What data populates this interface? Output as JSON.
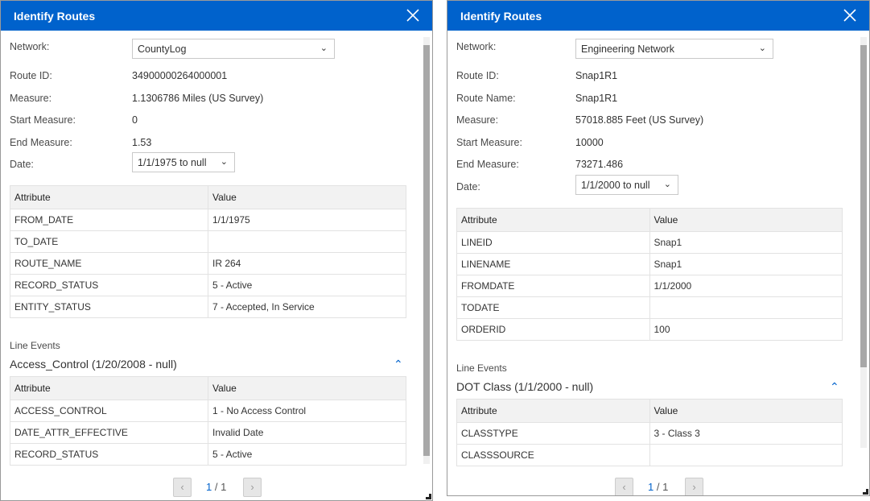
{
  "panels": [
    {
      "title": "Identify Routes",
      "fields": [
        {
          "label": "Network:"
        },
        {
          "label": "Route ID:",
          "value": "34900000264000001"
        },
        {
          "label": "Measure:",
          "value": "1.1306786 Miles (US Survey)"
        },
        {
          "label": "Start Measure:",
          "value": "0"
        },
        {
          "label": "End Measure:",
          "value": "1.53"
        },
        {
          "label": "Date:"
        }
      ],
      "network": "CountyLog",
      "date": "1/1/1975 to null",
      "table": {
        "headers": [
          "Attribute",
          "Value"
        ],
        "rows": [
          [
            "FROM_DATE",
            "1/1/1975"
          ],
          [
            "TO_DATE",
            ""
          ],
          [
            "ROUTE_NAME",
            "IR 264"
          ],
          [
            "RECORD_STATUS",
            "5 - Active"
          ],
          [
            "ENTITY_STATUS",
            "7 - Accepted, In Service"
          ]
        ]
      },
      "line_events_label": "Line Events",
      "event_title": "Access_Control (1/20/2008 - null)",
      "event_table": {
        "headers": [
          "Attribute",
          "Value"
        ],
        "rows": [
          [
            "ACCESS_CONTROL",
            "1 - No Access Control"
          ],
          [
            "DATE_ATTR_EFFECTIVE",
            "Invalid Date"
          ],
          [
            "RECORD_STATUS",
            "5 - Active"
          ]
        ]
      },
      "page_current": "1",
      "page_total": "/ 1"
    },
    {
      "title": "Identify Routes",
      "fields": [
        {
          "label": "Network:"
        },
        {
          "label": "Route ID:",
          "value": "Snap1R1"
        },
        {
          "label": "Route Name:",
          "value": "Snap1R1"
        },
        {
          "label": "Measure:",
          "value": "57018.885 Feet (US Survey)"
        },
        {
          "label": "Start Measure:",
          "value": "10000"
        },
        {
          "label": "End Measure:",
          "value": "73271.486"
        },
        {
          "label": "Date:"
        }
      ],
      "network": "Engineering Network",
      "date": "1/1/2000 to null",
      "table": {
        "headers": [
          "Attribute",
          "Value"
        ],
        "rows": [
          [
            "LINEID",
            "Snap1"
          ],
          [
            "LINENAME",
            "Snap1"
          ],
          [
            "FROMDATE",
            "1/1/2000"
          ],
          [
            "TODATE",
            ""
          ],
          [
            "ORDERID",
            "100"
          ]
        ]
      },
      "line_events_label": "Line Events",
      "event_title": "DOT Class (1/1/2000 - null)",
      "event_table": {
        "headers": [
          "Attribute",
          "Value"
        ],
        "rows": [
          [
            "CLASSTYPE",
            "3 - Class 3"
          ],
          [
            "CLASSSOURCE",
            ""
          ]
        ]
      },
      "page_current": "1",
      "page_total": "/ 1"
    }
  ]
}
